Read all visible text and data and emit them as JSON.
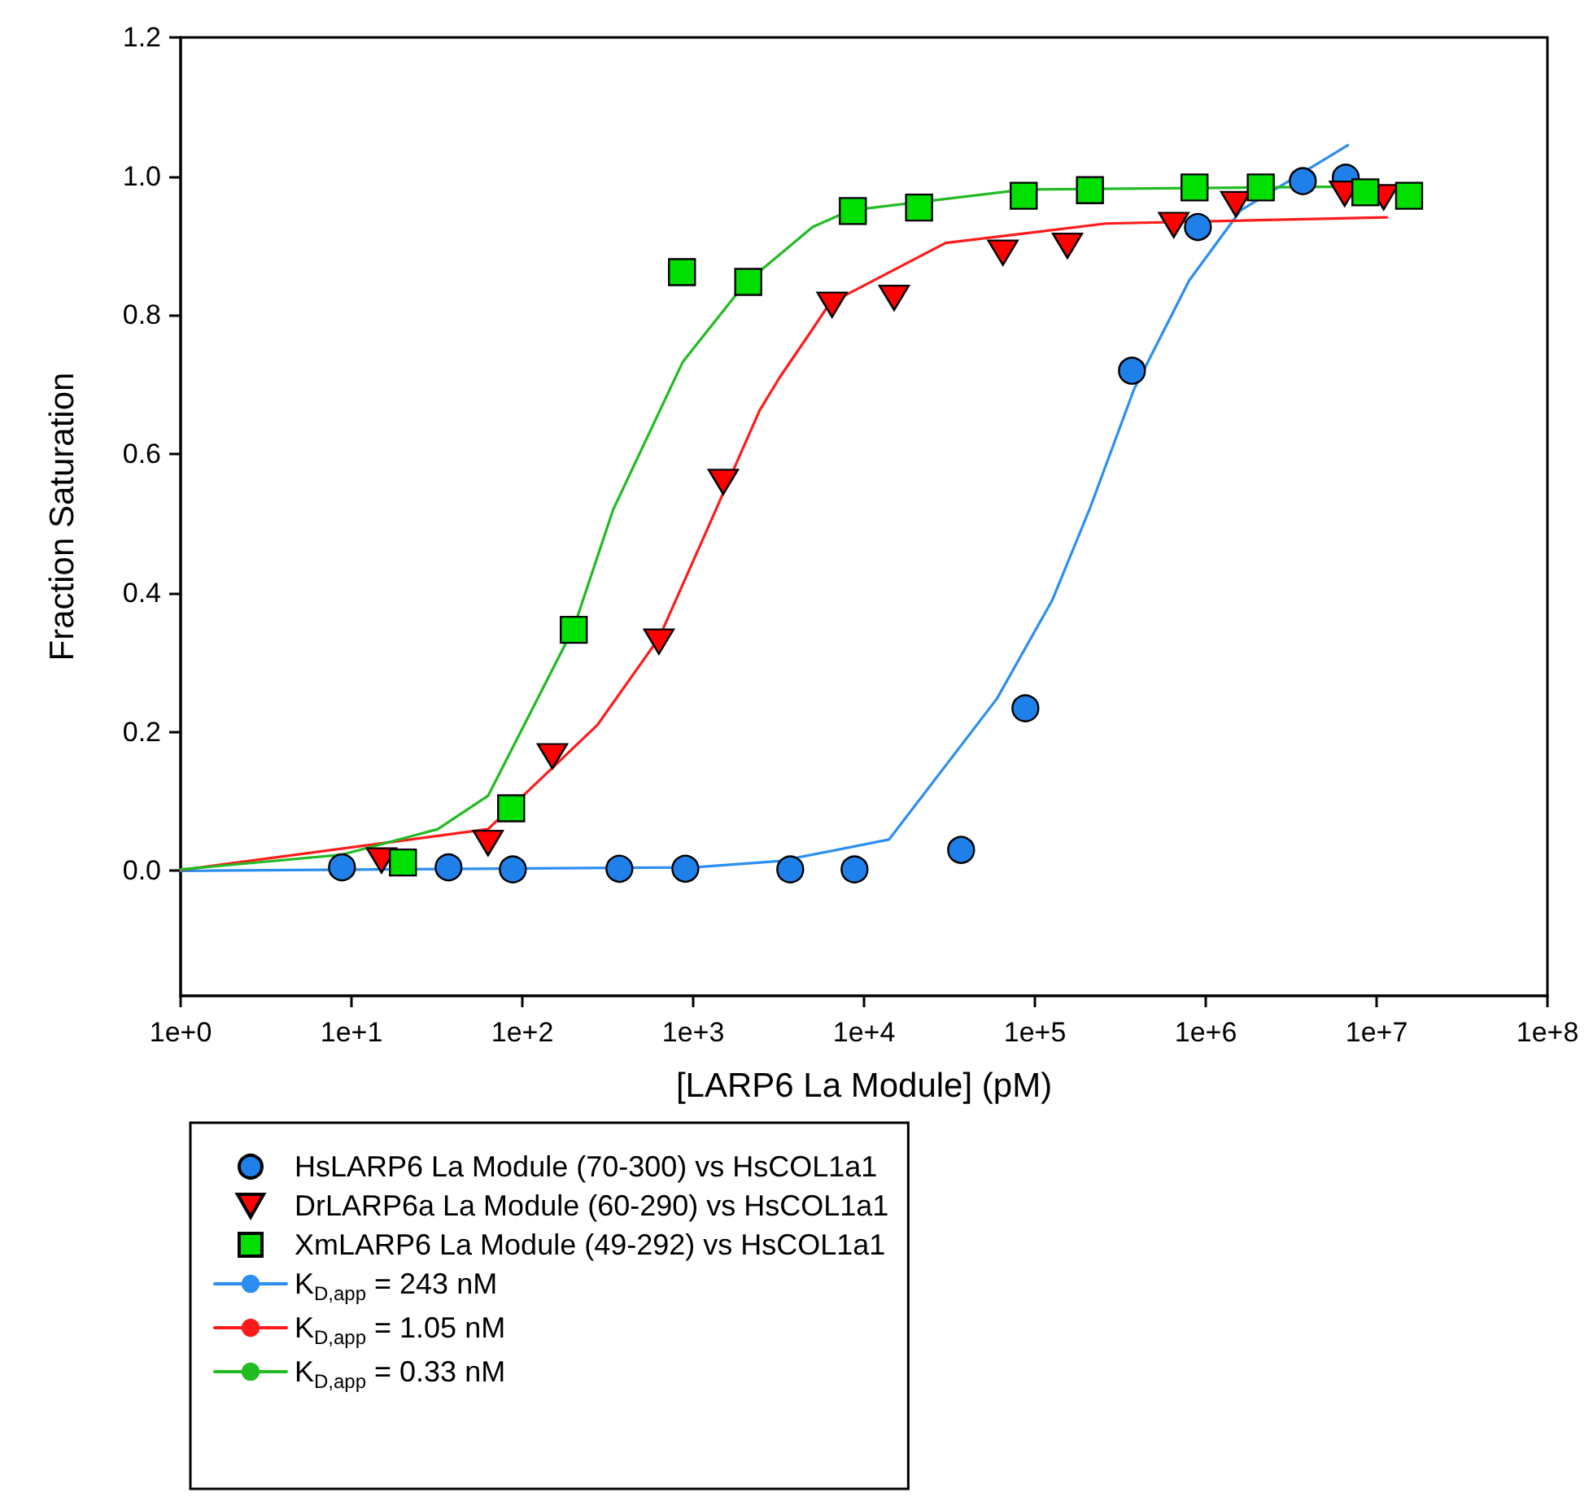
{
  "chart_data": {
    "type": "scatter",
    "xlabel": "[LARP6 La Module] (pM)",
    "ylabel": "Fraction Saturation",
    "log": "x",
    "grid": false,
    "legend": "bottom left",
    "xlim": [
      1,
      100000000
    ],
    "xticks": [
      {
        "value": 1,
        "label": "1e+0"
      },
      {
        "value": 10,
        "label": "1e+1"
      },
      {
        "value": 100,
        "label": "1e+2"
      },
      {
        "value": 1000,
        "label": "1e+3"
      },
      {
        "value": 10000,
        "label": "1e+4"
      },
      {
        "value": 100000,
        "label": "1e+5"
      },
      {
        "value": 1000000,
        "label": "1e+6"
      },
      {
        "value": 10000000,
        "label": "1e+7"
      },
      {
        "value": 100000000,
        "label": "1e+8"
      }
    ],
    "ylim": [
      -0.18,
      1.2
    ],
    "yticks": [
      {
        "value": 0,
        "label": "0.0"
      },
      0.2,
      0.4,
      0.6,
      0.8,
      {
        "value": 1,
        "label": "1.0"
      },
      1.2
    ],
    "series": [
      {
        "name": "HsLARP6 La Module (70-300) vs HsCOL1a1",
        "color": "#1e80e8",
        "marker": "circle",
        "x": [
          8.8,
          37,
          88,
          370,
          900,
          3700,
          8800,
          37000,
          88000,
          370000,
          900000,
          3700000,
          6600000
        ],
        "values": [
          0.005,
          0.005,
          0.002,
          0.003,
          0.003,
          0.002,
          0.002,
          0.03,
          0.234,
          0.72,
          0.927,
          0.993,
          0.998
        ]
      },
      {
        "name": "DrLARP6a La Module (60-290) vs HsCOL1a1",
        "color": "#ff0000",
        "marker": "triangle",
        "x": [
          15,
          63,
          150,
          630,
          1500,
          6500,
          15000,
          65000,
          155000,
          650000,
          1500000,
          6500000,
          11000000
        ],
        "values": [
          0.015,
          0.04,
          0.165,
          0.33,
          0.56,
          0.815,
          0.825,
          0.89,
          0.9,
          0.93,
          0.96,
          0.975,
          0.97
        ]
      },
      {
        "name": "XmLARP6 La Module (49-292) vs HsCOL1a1",
        "color": "#00e000",
        "marker": "square",
        "x": [
          20,
          86,
          200,
          860,
          2100,
          8600,
          21000,
          86000,
          210000,
          860000,
          2100000,
          8600000,
          15500000
        ],
        "values": [
          0.012,
          0.09,
          0.347,
          0.862,
          0.848,
          0.95,
          0.955,
          0.972,
          0.98,
          0.984,
          0.984,
          0.977,
          0.972
        ]
      },
      {
        "type": "line",
        "name": "K$_{D,app}$ = 243 nM",
        "color": "#2b8ef0",
        "marker": "none",
        "x": [
          1,
          1000,
          3200,
          14000,
          60000,
          126000,
          210000,
          380000,
          800000,
          1600000,
          6800000
        ],
        "values": [
          0,
          0.005,
          0.014,
          0.045,
          0.248,
          0.389,
          0.522,
          0.693,
          0.85,
          0.951,
          1.045
        ]
      },
      {
        "type": "line",
        "name": "K$_{D,app}$ = 1.05 nM",
        "color": "#ff1a1a",
        "marker": "none",
        "x": [
          1,
          63,
          275,
          630,
          1200,
          2450,
          3200,
          5000,
          6300,
          30000,
          260000,
          11500000
        ],
        "values": [
          0.001,
          0.06,
          0.21,
          0.335,
          0.49,
          0.663,
          0.71,
          0.78,
          0.817,
          0.904,
          0.932,
          0.941
        ]
      },
      {
        "type": "line",
        "name": "K$_{D,app}$ = 0.33 nM",
        "color": "#22bb22",
        "marker": "none",
        "x": [
          1,
          8.7,
          32,
          63,
          200,
          340,
          870,
          2000,
          5000,
          8300,
          87000,
          17000000
        ],
        "values": [
          0.002,
          0.023,
          0.06,
          0.108,
          0.35,
          0.52,
          0.733,
          0.845,
          0.927,
          0.951,
          0.981,
          0.986
        ]
      }
    ]
  }
}
